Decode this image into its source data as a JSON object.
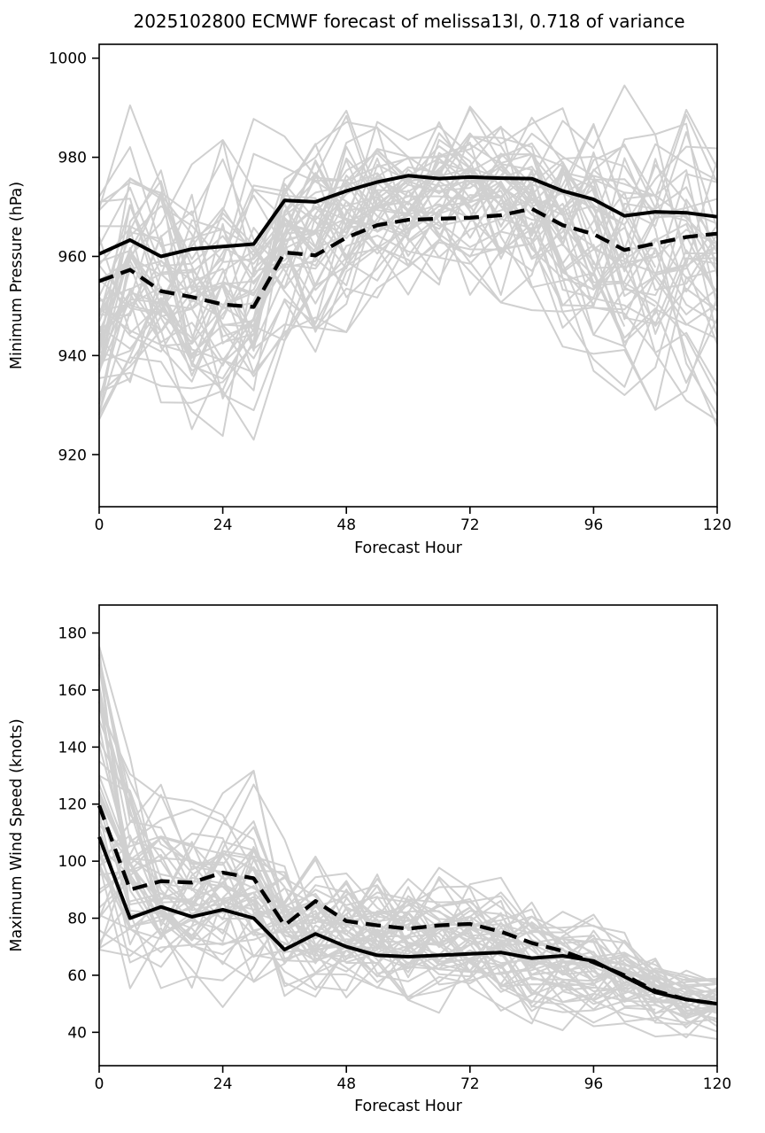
{
  "title": "2025102800 ECMWF forecast of melissa13l, 0.718 of variance",
  "colors": {
    "ensemble_gray": "#d0d0d0",
    "line_black": "#000000",
    "background": "#ffffff"
  },
  "chart_data": [
    {
      "type": "line",
      "title": "",
      "xlabel": "Forecast Hour",
      "ylabel": "Minimum Pressure (hPa)",
      "x": [
        0,
        6,
        12,
        18,
        24,
        30,
        36,
        42,
        48,
        54,
        60,
        66,
        72,
        78,
        84,
        90,
        96,
        102,
        108,
        114,
        120
      ],
      "xticks": [
        0,
        24,
        48,
        72,
        96,
        120
      ],
      "yticks": [
        1000,
        980,
        960,
        940,
        920
      ],
      "xlim": [
        0,
        120
      ],
      "ylim": [
        909.5,
        1002.8
      ],
      "grid": false,
      "legend": "none",
      "series": [
        {
          "name": "solid-mean-line",
          "style": "solid",
          "color": "#000000",
          "width": 4,
          "values": [
            960.5,
            963.3,
            960.0,
            961.5,
            962.0,
            962.5,
            971.3,
            971.0,
            973.2,
            975.0,
            976.3,
            975.7,
            976.0,
            975.8,
            975.7,
            973.2,
            971.5,
            968.2,
            969.0,
            968.8,
            968.0
          ]
        },
        {
          "name": "dashed-line",
          "style": "dashed",
          "color": "#000000",
          "width": 4.3,
          "values": [
            955.0,
            957.3,
            953.0,
            951.8,
            950.3,
            949.8,
            960.8,
            960.2,
            963.8,
            966.3,
            967.4,
            967.6,
            967.8,
            968.3,
            969.6,
            966.3,
            964.5,
            961.3,
            962.6,
            963.9,
            964.6
          ]
        }
      ],
      "ensemble": {
        "name": "ensemble-members",
        "count": 51,
        "seed": 12,
        "color": "#d0d0d0",
        "width": 2,
        "env_min": [
          923,
          928,
          926,
          920,
          916,
          922,
          936,
          940,
          944,
          948,
          950,
          951,
          950,
          950,
          946,
          941,
          936,
          931,
          928,
          926,
          923
        ],
        "env_max": [
          975,
          993,
          990,
          988,
          992,
          990,
          994,
          991,
          993,
          996,
          995,
          996,
          996,
          997,
          995,
          995,
          996,
          999,
          997,
          999,
          991
        ]
      }
    },
    {
      "type": "line",
      "title": "",
      "xlabel": "Forecast Hour",
      "ylabel": "Maximum Wind Speed (knots)",
      "x": [
        0,
        6,
        12,
        18,
        24,
        30,
        36,
        42,
        48,
        54,
        60,
        66,
        72,
        78,
        84,
        90,
        96,
        102,
        108,
        114,
        120
      ],
      "xticks": [
        0,
        24,
        48,
        72,
        96,
        120
      ],
      "yticks": [
        180,
        160,
        140,
        120,
        100,
        80,
        60,
        40
      ],
      "xlim": [
        0,
        120
      ],
      "ylim": [
        28.3,
        189.8
      ],
      "grid": false,
      "legend": "none",
      "series": [
        {
          "name": "solid-mean-line",
          "style": "solid",
          "color": "#000000",
          "width": 4,
          "values": [
            108.5,
            80.0,
            84.0,
            80.5,
            83.0,
            80.0,
            69.0,
            74.5,
            70.0,
            67.0,
            66.5,
            67.0,
            67.5,
            68.0,
            66.0,
            66.8,
            65.0,
            59.5,
            54.0,
            51.5,
            50.0
          ]
        },
        {
          "name": "dashed-line",
          "style": "dashed",
          "color": "#000000",
          "width": 4.3,
          "values": [
            119.5,
            90.0,
            93.0,
            92.5,
            96.0,
            94.0,
            77.5,
            86.0,
            79.0,
            77.5,
            76.3,
            77.5,
            78.0,
            75.3,
            71.3,
            68.5,
            64.5,
            60.0,
            54.5,
            51.5,
            50.0
          ]
        }
      ],
      "ensemble": {
        "name": "ensemble-members",
        "count": 51,
        "seed": 99,
        "color": "#d0d0d0",
        "width": 2,
        "env_min": [
          62,
          52,
          50,
          48,
          47,
          46,
          45,
          45,
          44,
          43,
          42,
          42,
          41,
          41,
          40,
          40,
          39,
          38,
          38,
          37,
          37
        ],
        "env_max": [
          185,
          138,
          128,
          122,
          125,
          133,
          110,
          105,
          103,
          100,
          98,
          100,
          97,
          95,
          90,
          88,
          85,
          80,
          72,
          66,
          62
        ]
      }
    }
  ]
}
